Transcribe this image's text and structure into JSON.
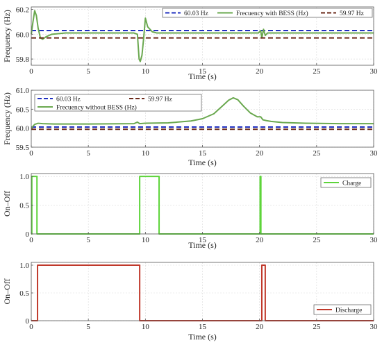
{
  "chart_data": [
    {
      "type": "line",
      "xlabel": "Time (s)",
      "ylabel": "Frequency (Hz)",
      "xlim": [
        0,
        30
      ],
      "ylim": [
        59.75,
        60.22
      ],
      "xticks": [
        0,
        5,
        10,
        15,
        20,
        25,
        30
      ],
      "yticks": [
        59.8,
        60.0,
        60.2
      ],
      "ytick_labels": [
        "59.8",
        "60.0",
        "60.2"
      ],
      "grid": true,
      "legend_position": "top-right",
      "series": [
        {
          "name": "60.03 Hz",
          "color": "#1f2fbf",
          "style": "dashed",
          "x": [
            0,
            30
          ],
          "y": [
            60.03,
            60.03
          ]
        },
        {
          "name": "Frecuency with BESS (Hz)",
          "color": "#6aa84f",
          "style": "solid",
          "x": [
            0,
            0.15,
            0.3,
            0.45,
            0.6,
            0.8,
            1.0,
            1.3,
            1.8,
            3,
            6,
            9.0,
            9.3,
            9.45,
            9.55,
            9.7,
            9.85,
            10.0,
            10.2,
            10.6,
            11,
            15,
            19.9,
            20.1,
            20.2,
            20.35,
            20.5,
            20.7,
            21,
            25,
            30
          ],
          "y": [
            60.0,
            60.1,
            60.19,
            60.15,
            60.05,
            59.97,
            59.96,
            59.98,
            60.0,
            60.01,
            60.01,
            60.01,
            60.0,
            59.8,
            59.78,
            59.83,
            59.97,
            60.13,
            60.06,
            60.02,
            60.01,
            60.01,
            60.01,
            60.03,
            59.97,
            60.04,
            59.99,
            60.01,
            60.01,
            60.01,
            60.01
          ]
        },
        {
          "name": "59.97 Hz",
          "color": "#6b2a1a",
          "style": "dashed",
          "x": [
            0,
            30
          ],
          "y": [
            59.97,
            59.97
          ]
        }
      ]
    },
    {
      "type": "line",
      "xlabel": "Time (s)",
      "ylabel": "Frequency (Hz)",
      "xlim": [
        0,
        30
      ],
      "ylim": [
        59.5,
        61.0
      ],
      "xticks": [
        0,
        5,
        10,
        15,
        20,
        25,
        30
      ],
      "yticks": [
        59.5,
        60.0,
        60.5,
        61.0
      ],
      "ytick_labels": [
        "59.5",
        "60.0",
        "60.5",
        "61.0"
      ],
      "grid": true,
      "legend_position": "top",
      "series": [
        {
          "name": "60.03 Hz",
          "color": "#1f2fbf",
          "style": "dashed",
          "x": [
            0,
            30
          ],
          "y": [
            60.03,
            60.03
          ]
        },
        {
          "name": "59.97 Hz",
          "color": "#6b2a1a",
          "style": "dashed",
          "x": [
            0,
            30
          ],
          "y": [
            59.97,
            59.97
          ]
        },
        {
          "name": "Frecuency without BESS (Hz)",
          "color": "#6aa84f",
          "style": "solid",
          "x": [
            0,
            0.3,
            0.6,
            1.0,
            2,
            5,
            9.0,
            9.3,
            9.5,
            10,
            12,
            14,
            15,
            16,
            16.8,
            17.3,
            17.7,
            18.1,
            18.6,
            19.2,
            19.8,
            20.1,
            20.3,
            20.6,
            21,
            22,
            24,
            27,
            30
          ],
          "y": [
            60.0,
            60.1,
            60.13,
            60.12,
            60.11,
            60.11,
            60.12,
            60.16,
            60.12,
            60.13,
            60.14,
            60.19,
            60.25,
            60.38,
            60.6,
            60.74,
            60.8,
            60.75,
            60.58,
            60.4,
            60.3,
            60.3,
            60.22,
            60.2,
            60.18,
            60.15,
            60.13,
            60.12,
            60.12
          ]
        }
      ]
    },
    {
      "type": "line",
      "xlabel": "Time (s)",
      "ylabel": "On–Off",
      "xlim": [
        0,
        30
      ],
      "ylim": [
        0,
        1.05
      ],
      "xticks": [
        0,
        5,
        10,
        15,
        20,
        25,
        30
      ],
      "yticks": [
        0,
        0.5,
        1
      ],
      "ytick_labels": [
        "0",
        "0.5",
        "1.0"
      ],
      "grid": true,
      "legend_position": "top-right",
      "series": [
        {
          "name": "Charge",
          "color": "#5dd43a",
          "style": "solid",
          "x": [
            0,
            0.05,
            0.05,
            0.5,
            0.5,
            9.5,
            9.5,
            11.2,
            11.2,
            20.05,
            20.05,
            20.12,
            20.12,
            30
          ],
          "y": [
            0,
            0,
            1,
            1,
            0,
            0,
            1,
            1,
            0,
            0,
            1,
            1,
            0,
            0
          ]
        }
      ]
    },
    {
      "type": "line",
      "xlabel": "Time (s)",
      "ylabel": "On–Off",
      "xlim": [
        0,
        30
      ],
      "ylim": [
        0,
        1.05
      ],
      "xticks": [
        0,
        5,
        10,
        15,
        20,
        25,
        30
      ],
      "yticks": [
        0,
        0.5,
        1
      ],
      "ytick_labels": [
        "0",
        "0.5",
        "1.0"
      ],
      "grid": true,
      "legend_position": "bottom-right",
      "series": [
        {
          "name": "Discharge",
          "color": "#c0392b",
          "style": "solid",
          "x": [
            0,
            0.55,
            0.55,
            9.5,
            9.5,
            20.2,
            20.2,
            20.5,
            20.5,
            30
          ],
          "y": [
            0,
            0,
            1,
            1,
            0,
            0,
            1,
            1,
            0,
            0
          ]
        }
      ]
    }
  ]
}
